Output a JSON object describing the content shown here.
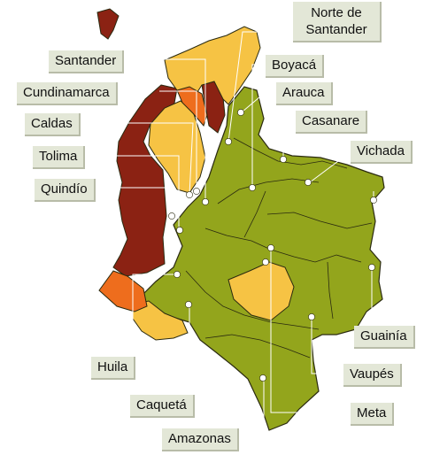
{
  "colors": {
    "green": "#93a51c",
    "dark_red": "#8b2213",
    "orange": "#ee6d1d",
    "yellow": "#f6c344",
    "border": "#2a2a10",
    "leader": "#ffffff",
    "label_bg": "#e3e7d7"
  },
  "labels": {
    "norte_de_santander_line1": "Norte de",
    "norte_de_santander_line2": "Santander",
    "santander": "Santander",
    "boyaca": "Boyacá",
    "cundinamarca": "Cundinamarca",
    "arauca": "Arauca",
    "caldas": "Caldas",
    "casanare": "Casanare",
    "tolima": "Tolima",
    "vichada": "Vichada",
    "quindio": "Quindío",
    "guainia": "Guainía",
    "huila": "Huila",
    "vaupes": "Vaupés",
    "caqueta": "Caquetá",
    "meta": "Meta",
    "amazonas": "Amazonas"
  }
}
